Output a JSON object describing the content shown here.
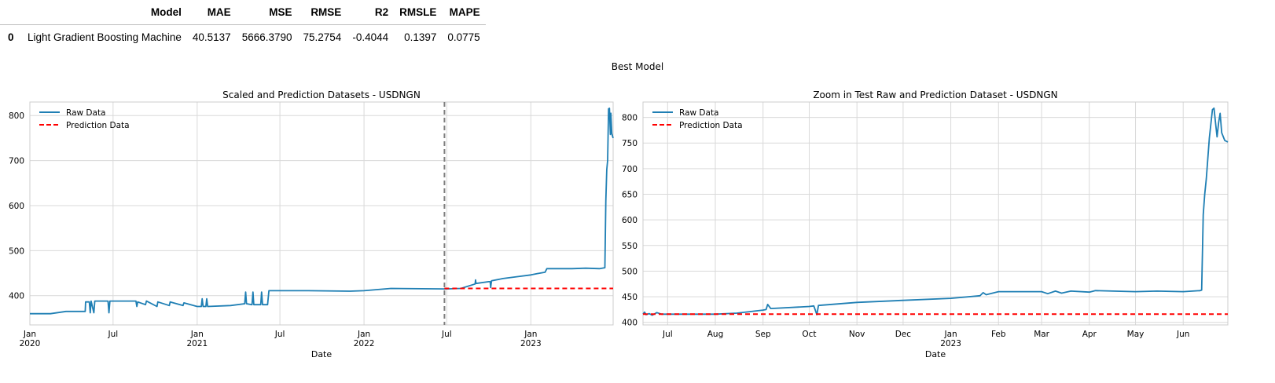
{
  "metrics_table": {
    "columns": [
      "",
      "Model",
      "MAE",
      "MSE",
      "RMSE",
      "R2",
      "RMSLE",
      "MAPE"
    ],
    "rows": [
      [
        "0",
        "Light Gradient Boosting Machine",
        "40.5137",
        "5666.3790",
        "75.2754",
        "-0.4044",
        "0.1397",
        "0.0775"
      ]
    ]
  },
  "suptitle": "Best Model",
  "colors": {
    "raw": "#1f7fb4",
    "pred": "#ff0000",
    "split": "#7f7f7f",
    "grid": "#d9d9d9"
  },
  "chart_data": [
    {
      "type": "line",
      "title": "Scaled and Prediction Datasets - USDNGN",
      "xlabel": "Date",
      "ylabel": "",
      "xlim": [
        "2020-01-01",
        "2023-06-30"
      ],
      "ylim": [
        335,
        830
      ],
      "yticks": [
        400,
        500,
        600,
        700,
        800
      ],
      "xticks": [
        {
          "date": "2020-01-01",
          "label": "Jan",
          "year": "2020"
        },
        {
          "date": "2020-07-01",
          "label": "Jul",
          "year": ""
        },
        {
          "date": "2021-01-01",
          "label": "Jan",
          "year": "2021"
        },
        {
          "date": "2021-07-01",
          "label": "Jul",
          "year": ""
        },
        {
          "date": "2022-01-01",
          "label": "Jan",
          "year": "2022"
        },
        {
          "date": "2022-07-01",
          "label": "Jul",
          "year": ""
        },
        {
          "date": "2023-01-01",
          "label": "Jan",
          "year": "2023"
        }
      ],
      "grid": true,
      "legend": "top-left",
      "vline": "2022-06-26",
      "series": [
        {
          "name": "Raw Data",
          "style": "solid",
          "points": [
            [
              "2020-01-01",
              360
            ],
            [
              "2020-02-15",
              360
            ],
            [
              "2020-03-20",
              365
            ],
            [
              "2020-05-01",
              365
            ],
            [
              "2020-05-02",
              386
            ],
            [
              "2020-05-10",
              386
            ],
            [
              "2020-05-12",
              362
            ],
            [
              "2020-05-14",
              388
            ],
            [
              "2020-05-20",
              362
            ],
            [
              "2020-05-22",
              388
            ],
            [
              "2020-06-20",
              388
            ],
            [
              "2020-06-22",
              362
            ],
            [
              "2020-06-24",
              388
            ],
            [
              "2020-08-20",
              388
            ],
            [
              "2020-08-22",
              376
            ],
            [
              "2020-08-24",
              386
            ],
            [
              "2020-09-10",
              380
            ],
            [
              "2020-09-12",
              388
            ],
            [
              "2020-10-05",
              376
            ],
            [
              "2020-10-07",
              386
            ],
            [
              "2020-11-01",
              378
            ],
            [
              "2020-11-03",
              386
            ],
            [
              "2020-12-01",
              378
            ],
            [
              "2020-12-03",
              384
            ],
            [
              "2021-01-01",
              376
            ],
            [
              "2021-01-10",
              376
            ],
            [
              "2021-01-12",
              393
            ],
            [
              "2021-01-14",
              376
            ],
            [
              "2021-01-20",
              376
            ],
            [
              "2021-01-22",
              393
            ],
            [
              "2021-01-24",
              376
            ],
            [
              "2021-03-15",
              378
            ],
            [
              "2021-04-15",
              382
            ],
            [
              "2021-04-17",
              408
            ],
            [
              "2021-04-19",
              382
            ],
            [
              "2021-05-01",
              380
            ],
            [
              "2021-05-03",
              408
            ],
            [
              "2021-05-05",
              380
            ],
            [
              "2021-05-20",
              380
            ],
            [
              "2021-05-22",
              408
            ],
            [
              "2021-05-24",
              380
            ],
            [
              "2021-06-04",
              380
            ],
            [
              "2021-06-07",
              411
            ],
            [
              "2021-09-01",
              411
            ],
            [
              "2021-12-01",
              410
            ],
            [
              "2022-01-01",
              411
            ],
            [
              "2022-03-01",
              416
            ],
            [
              "2022-06-26",
              415
            ],
            [
              "2022-07-01",
              415
            ],
            [
              "2022-08-01",
              416
            ],
            [
              "2022-09-01",
              426
            ],
            [
              "2022-09-02",
              435
            ],
            [
              "2022-09-03",
              427
            ],
            [
              "2022-10-01",
              431
            ],
            [
              "2022-10-04",
              431
            ],
            [
              "2022-10-05",
              418
            ],
            [
              "2022-10-07",
              433
            ],
            [
              "2022-11-01",
              438
            ],
            [
              "2022-12-01",
              442
            ],
            [
              "2023-01-01",
              446
            ],
            [
              "2023-01-15",
              449
            ],
            [
              "2023-02-01",
              452
            ],
            [
              "2023-02-05",
              460
            ],
            [
              "2023-03-01",
              460
            ],
            [
              "2023-04-01",
              460
            ],
            [
              "2023-05-01",
              461
            ],
            [
              "2023-06-01",
              460
            ],
            [
              "2023-06-12",
              462
            ],
            [
              "2023-06-14",
              610
            ],
            [
              "2023-06-16",
              680
            ],
            [
              "2023-06-18",
              700
            ],
            [
              "2023-06-20",
              815
            ],
            [
              "2023-06-22",
              816
            ],
            [
              "2023-06-24",
              758
            ],
            [
              "2023-06-25",
              805
            ],
            [
              "2023-06-27",
              760
            ],
            [
              "2023-06-30",
              750
            ]
          ]
        },
        {
          "name": "Prediction Data",
          "style": "dashed",
          "points": [
            [
              "2022-06-26",
              416
            ],
            [
              "2023-06-30",
              416
            ]
          ]
        }
      ]
    },
    {
      "type": "line",
      "title": "Zoom in Test Raw and Prediction Dataset - USDNGN",
      "xlabel": "Date",
      "ylabel": "",
      "xlim": [
        "2022-06-15",
        "2023-06-30"
      ],
      "ylim": [
        395,
        830
      ],
      "yticks": [
        400,
        450,
        500,
        550,
        600,
        650,
        700,
        750,
        800
      ],
      "xticks": [
        {
          "date": "2022-07-01",
          "label": "Jul",
          "year": ""
        },
        {
          "date": "2022-08-01",
          "label": "Aug",
          "year": ""
        },
        {
          "date": "2022-09-01",
          "label": "Sep",
          "year": ""
        },
        {
          "date": "2022-10-01",
          "label": "Oct",
          "year": ""
        },
        {
          "date": "2022-11-01",
          "label": "Nov",
          "year": ""
        },
        {
          "date": "2022-12-01",
          "label": "Dec",
          "year": ""
        },
        {
          "date": "2023-01-01",
          "label": "Jan",
          "year": "2023"
        },
        {
          "date": "2023-02-01",
          "label": "Feb",
          "year": ""
        },
        {
          "date": "2023-03-01",
          "label": "Mar",
          "year": ""
        },
        {
          "date": "2023-04-01",
          "label": "Apr",
          "year": ""
        },
        {
          "date": "2023-05-01",
          "label": "May",
          "year": ""
        },
        {
          "date": "2023-06-01",
          "label": "Jun",
          "year": ""
        }
      ],
      "grid": true,
      "legend": "top-left",
      "series": [
        {
          "name": "Raw Data",
          "style": "solid",
          "points": [
            [
              "2022-06-15",
              416
            ],
            [
              "2022-06-16",
              420
            ],
            [
              "2022-06-17",
              415
            ],
            [
              "2022-06-19",
              417
            ],
            [
              "2022-06-21",
              414
            ],
            [
              "2022-06-24",
              419
            ],
            [
              "2022-06-27",
              416
            ],
            [
              "2022-07-15",
              416
            ],
            [
              "2022-08-01",
              416
            ],
            [
              "2022-08-15",
              418
            ],
            [
              "2022-09-01",
              424
            ],
            [
              "2022-09-03",
              425
            ],
            [
              "2022-09-04",
              435
            ],
            [
              "2022-09-06",
              427
            ],
            [
              "2022-10-01",
              431
            ],
            [
              "2022-10-04",
              432
            ],
            [
              "2022-10-06",
              415
            ],
            [
              "2022-10-07",
              433
            ],
            [
              "2022-11-01",
              439
            ],
            [
              "2022-12-01",
              443
            ],
            [
              "2023-01-01",
              447
            ],
            [
              "2023-01-20",
              452
            ],
            [
              "2023-01-22",
              458
            ],
            [
              "2023-01-24",
              454
            ],
            [
              "2023-02-01",
              460
            ],
            [
              "2023-03-01",
              460
            ],
            [
              "2023-03-05",
              456
            ],
            [
              "2023-03-10",
              461
            ],
            [
              "2023-03-14",
              457
            ],
            [
              "2023-03-20",
              461
            ],
            [
              "2023-04-01",
              459
            ],
            [
              "2023-04-05",
              462
            ],
            [
              "2023-05-01",
              460
            ],
            [
              "2023-05-15",
              461
            ],
            [
              "2023-06-01",
              460
            ],
            [
              "2023-06-12",
              462
            ],
            [
              "2023-06-13",
              463
            ],
            [
              "2023-06-14",
              610
            ],
            [
              "2023-06-15",
              650
            ],
            [
              "2023-06-16",
              680
            ],
            [
              "2023-06-18",
              760
            ],
            [
              "2023-06-20",
              815
            ],
            [
              "2023-06-21",
              818
            ],
            [
              "2023-06-22",
              790
            ],
            [
              "2023-06-23",
              762
            ],
            [
              "2023-06-24",
              790
            ],
            [
              "2023-06-25",
              808
            ],
            [
              "2023-06-26",
              770
            ],
            [
              "2023-06-28",
              755
            ],
            [
              "2023-06-30",
              752
            ]
          ]
        },
        {
          "name": "Prediction Data",
          "style": "dashed",
          "points": [
            [
              "2022-06-15",
              416
            ],
            [
              "2023-06-30",
              416
            ]
          ]
        }
      ]
    }
  ]
}
